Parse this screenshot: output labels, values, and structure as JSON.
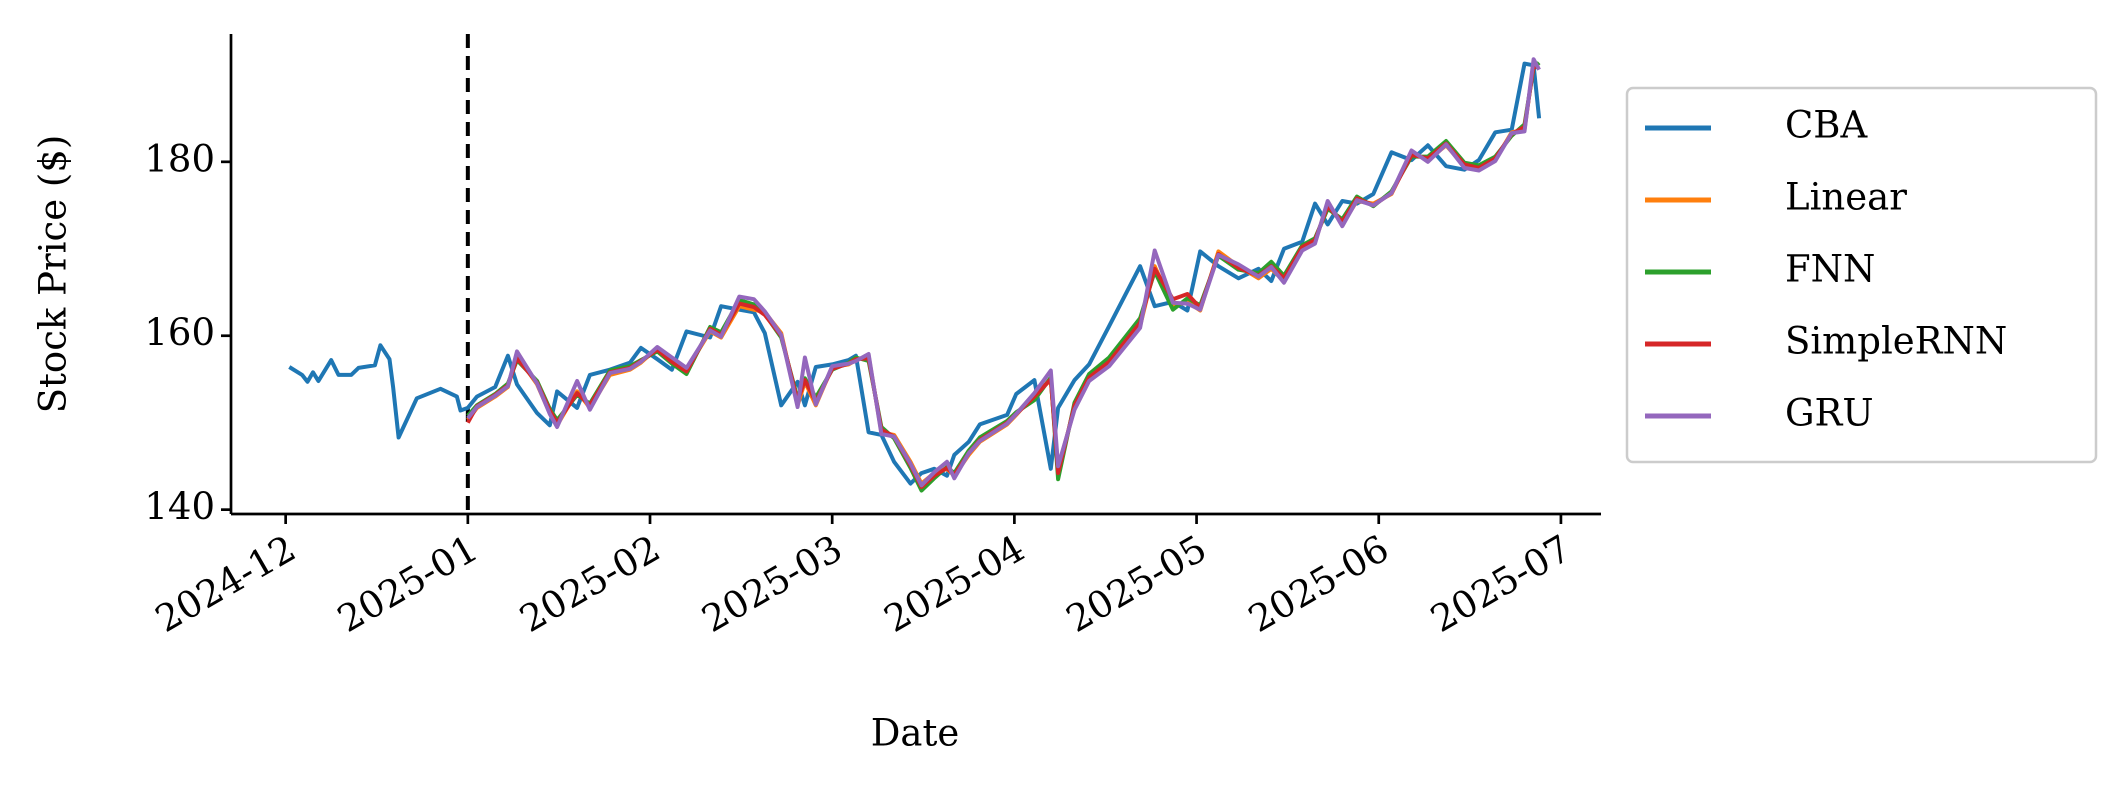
{
  "chart_data": {
    "type": "line",
    "xlabel": "Date",
    "ylabel": "Stock Price ($)",
    "xlim": [
      -0.3,
      7.22
    ],
    "ylim": [
      139.5,
      194.7
    ],
    "xticks": [
      {
        "value": 0,
        "label": "2024-12"
      },
      {
        "value": 1,
        "label": "2025-01"
      },
      {
        "value": 2,
        "label": "2025-02"
      },
      {
        "value": 3,
        "label": "2025-03"
      },
      {
        "value": 4,
        "label": "2025-04"
      },
      {
        "value": 5,
        "label": "2025-05"
      },
      {
        "value": 6,
        "label": "2025-06"
      },
      {
        "value": 7,
        "label": "2025-07"
      }
    ],
    "yticks": [
      140,
      160,
      180
    ],
    "split_x": 1,
    "legend": "right",
    "x": [
      0.02,
      0.09,
      0.12,
      0.15,
      0.18,
      0.25,
      0.29,
      0.36,
      0.4,
      0.49,
      0.52,
      0.57,
      0.59,
      0.62,
      0.72,
      0.85,
      0.94,
      0.96,
      1.0,
      1.05,
      1.15,
      1.22,
      1.27,
      1.38,
      1.45,
      1.49,
      1.6,
      1.67,
      1.78,
      1.89,
      1.95,
      2.04,
      2.12,
      2.2,
      2.33,
      2.39,
      2.49,
      2.57,
      2.63,
      2.72,
      2.81,
      2.85,
      2.91,
      3.0,
      3.09,
      3.13,
      3.2,
      3.27,
      3.34,
      3.43,
      3.49,
      3.56,
      3.63,
      3.67,
      3.75,
      3.81,
      3.96,
      4.01,
      4.11,
      4.2,
      4.24,
      4.33,
      4.41,
      4.52,
      4.69,
      4.77,
      4.87,
      4.95,
      5.02,
      5.12,
      5.23,
      5.34,
      5.41,
      5.48,
      5.58,
      5.65,
      5.72,
      5.8,
      5.88,
      5.97,
      6.07,
      6.18,
      6.27,
      6.37,
      6.47,
      6.55,
      6.64,
      6.73,
      6.8,
      6.85,
      6.88
    ],
    "series": [
      {
        "name": "CBA",
        "color": "#1f77b4",
        "values": [
          156.4,
          155.5,
          154.7,
          155.8,
          154.8,
          157.2,
          155.5,
          155.5,
          156.3,
          156.6,
          158.9,
          157.3,
          154.1,
          148.3,
          152.8,
          153.9,
          153.0,
          151.4,
          151.7,
          153.0,
          154.1,
          157.7,
          154.4,
          151.1,
          149.7,
          153.6,
          151.7,
          155.5,
          156.1,
          156.9,
          158.6,
          157.3,
          156.1,
          160.5,
          159.8,
          163.4,
          163.0,
          162.7,
          160.3,
          152.0,
          154.7,
          152.0,
          156.4,
          156.7,
          157.2,
          157.7,
          148.9,
          148.6,
          145.5,
          143.0,
          144.2,
          144.7,
          143.9,
          146.3,
          147.8,
          149.8,
          150.9,
          153.3,
          154.9,
          144.7,
          151.7,
          154.9,
          156.7,
          161.1,
          168.0,
          163.4,
          163.9,
          162.9,
          169.7,
          168.0,
          166.6,
          167.7,
          166.3,
          170.0,
          170.8,
          175.2,
          172.8,
          175.5,
          175.2,
          176.3,
          181.1,
          180.2,
          181.9,
          179.5,
          179.1,
          180.2,
          183.4,
          183.7,
          191.3,
          191.1,
          185.0
        ]
      },
      {
        "name": "Linear",
        "color": "#ff7f0e",
        "values": [
          null,
          null,
          null,
          null,
          null,
          null,
          null,
          null,
          null,
          null,
          null,
          null,
          null,
          null,
          null,
          null,
          null,
          null,
          150.3,
          151.7,
          153.0,
          154.1,
          157.7,
          154.4,
          151.1,
          149.7,
          153.6,
          151.7,
          155.5,
          156.1,
          156.9,
          158.6,
          157.3,
          156.1,
          160.5,
          159.8,
          163.4,
          163.0,
          162.7,
          160.3,
          152.0,
          154.7,
          152.0,
          156.4,
          156.7,
          157.2,
          157.7,
          148.9,
          148.6,
          145.5,
          143.0,
          144.2,
          144.7,
          143.9,
          146.3,
          147.8,
          149.8,
          150.9,
          153.3,
          154.9,
          144.7,
          151.7,
          154.9,
          156.7,
          161.1,
          168.0,
          163.4,
          163.9,
          162.9,
          169.7,
          168.0,
          166.6,
          167.7,
          166.3,
          170.0,
          170.8,
          175.2,
          172.8,
          175.5,
          175.2,
          176.3,
          181.1,
          180.2,
          181.9,
          179.5,
          179.1,
          180.2,
          183.4,
          183.7,
          191.3,
          191.1
        ]
      },
      {
        "name": "FNN",
        "color": "#2ca02c",
        "values": [
          null,
          null,
          null,
          null,
          null,
          null,
          null,
          null,
          null,
          null,
          null,
          null,
          null,
          null,
          null,
          null,
          null,
          null,
          150.8,
          152.0,
          153.3,
          154.5,
          157.2,
          154.8,
          151.6,
          150.3,
          153.2,
          152.2,
          156.0,
          156.5,
          157.2,
          158.2,
          156.8,
          155.6,
          161.0,
          160.4,
          164.1,
          163.6,
          162.5,
          159.8,
          152.8,
          155.1,
          152.9,
          156.1,
          156.9,
          157.5,
          157.1,
          149.5,
          148.2,
          144.8,
          142.2,
          143.6,
          144.9,
          144.2,
          146.8,
          148.3,
          150.2,
          151.2,
          152.6,
          155.2,
          143.5,
          152.3,
          155.6,
          157.5,
          162.0,
          167.4,
          163.0,
          164.3,
          163.5,
          169.2,
          167.6,
          167.2,
          168.5,
          166.9,
          170.4,
          171.2,
          174.6,
          173.4,
          176.0,
          174.9,
          176.6,
          180.6,
          180.6,
          182.4,
          179.9,
          179.6,
          180.6,
          183.0,
          184.3,
          190.8,
          191.4
        ]
      },
      {
        "name": "SimpleRNN",
        "color": "#d62728",
        "values": [
          null,
          null,
          null,
          null,
          null,
          null,
          null,
          null,
          null,
          null,
          null,
          null,
          null,
          null,
          null,
          null,
          null,
          null,
          150.0,
          151.9,
          153.2,
          154.3,
          157.4,
          154.6,
          151.4,
          150.0,
          153.4,
          152.0,
          155.8,
          156.3,
          157.1,
          158.4,
          157.0,
          155.9,
          160.8,
          160.1,
          163.7,
          163.3,
          162.4,
          160.0,
          152.5,
          154.9,
          152.4,
          156.2,
          156.8,
          157.3,
          157.4,
          149.2,
          148.4,
          145.1,
          142.6,
          143.9,
          144.8,
          144.0,
          146.5,
          148.0,
          150.0,
          151.0,
          153.0,
          155.0,
          144.2,
          152.0,
          155.2,
          157.0,
          161.5,
          167.7,
          164.2,
          164.8,
          163.2,
          169.4,
          167.8,
          166.9,
          168.0,
          166.6,
          170.2,
          171.0,
          174.9,
          173.1,
          175.8,
          175.0,
          176.4,
          180.8,
          180.4,
          182.1,
          179.7,
          179.3,
          180.4,
          183.2,
          184.0,
          191.0,
          190.8
        ]
      },
      {
        "name": "GRU",
        "color": "#9467bd",
        "values": [
          null,
          null,
          null,
          null,
          null,
          null,
          null,
          null,
          null,
          null,
          null,
          null,
          null,
          null,
          null,
          null,
          null,
          null,
          150.5,
          151.8,
          153.1,
          154.2,
          158.2,
          154.5,
          151.0,
          149.5,
          154.8,
          151.5,
          155.7,
          156.2,
          157.0,
          158.7,
          157.5,
          156.3,
          160.6,
          159.9,
          164.5,
          164.2,
          162.8,
          160.1,
          151.8,
          157.5,
          152.1,
          156.5,
          156.8,
          157.1,
          157.9,
          148.7,
          148.4,
          145.3,
          142.8,
          144.3,
          145.5,
          143.6,
          146.5,
          147.9,
          149.9,
          151.0,
          153.4,
          156.0,
          145.0,
          151.5,
          154.8,
          156.5,
          160.9,
          169.8,
          163.8,
          163.7,
          163.0,
          169.3,
          168.2,
          166.8,
          167.9,
          166.1,
          169.8,
          170.6,
          175.5,
          172.6,
          175.6,
          175.0,
          176.4,
          181.3,
          180.0,
          182.0,
          179.3,
          179.0,
          180.1,
          183.3,
          183.5,
          191.8,
          190.6
        ]
      }
    ]
  }
}
